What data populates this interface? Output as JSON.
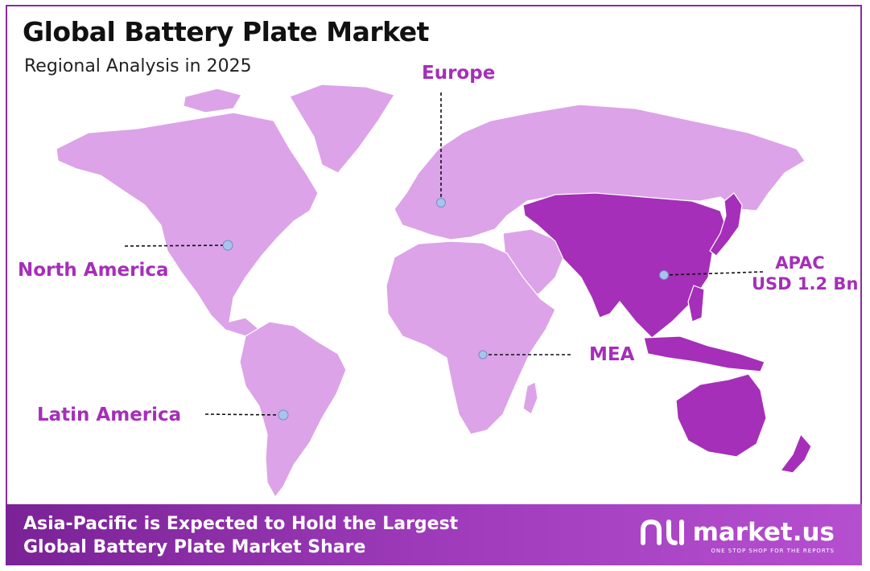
{
  "header": {
    "title": "Global Battery Plate Market",
    "subtitle": "Regional Analysis in 2025"
  },
  "regions": {
    "europe": {
      "label": "Europe"
    },
    "north_america": {
      "label": "North America"
    },
    "apac": {
      "label": "APAC",
      "value": "USD 1.2 Bn"
    },
    "mea": {
      "label": "MEA"
    },
    "latin_america": {
      "label": "Latin America"
    }
  },
  "footer": {
    "line1": "Asia-Pacific is Expected to Hold the Largest",
    "line2": "Global Battery Plate Market Share",
    "brand": "market.us",
    "tagline": "ONE STOP SHOP FOR THE REPORTS"
  },
  "colors": {
    "land": "#dca3e8",
    "highlight": "#a52fb8",
    "accent": "#8a2ca0",
    "marker": "#a9c4ec"
  },
  "icons": {
    "brand_logo": "market-us-logo-icon"
  }
}
